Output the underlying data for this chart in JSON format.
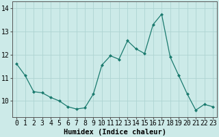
{
  "x": [
    0,
    1,
    2,
    3,
    4,
    5,
    6,
    7,
    8,
    9,
    10,
    11,
    12,
    13,
    14,
    15,
    16,
    17,
    18,
    19,
    20,
    21,
    22,
    23
  ],
  "y": [
    11.6,
    11.1,
    10.4,
    10.35,
    10.15,
    10.0,
    9.75,
    9.65,
    9.7,
    10.3,
    11.55,
    11.95,
    11.8,
    12.6,
    12.25,
    12.05,
    13.3,
    13.75,
    11.9,
    11.1,
    10.3,
    9.6,
    9.85,
    9.75
  ],
  "line_color": "#1a7a6e",
  "marker": "D",
  "marker_size": 2.0,
  "bg_color": "#cceae8",
  "grid_color": "#aed4d2",
  "xlabel": "Humidex (Indice chaleur)",
  "ylabel_ticks": [
    10,
    11,
    12,
    13,
    14
  ],
  "xlim": [
    -0.5,
    23.5
  ],
  "ylim": [
    9.3,
    14.3
  ],
  "xlabel_fontsize": 7.5,
  "tick_fontsize": 7,
  "spine_color": "#555555"
}
